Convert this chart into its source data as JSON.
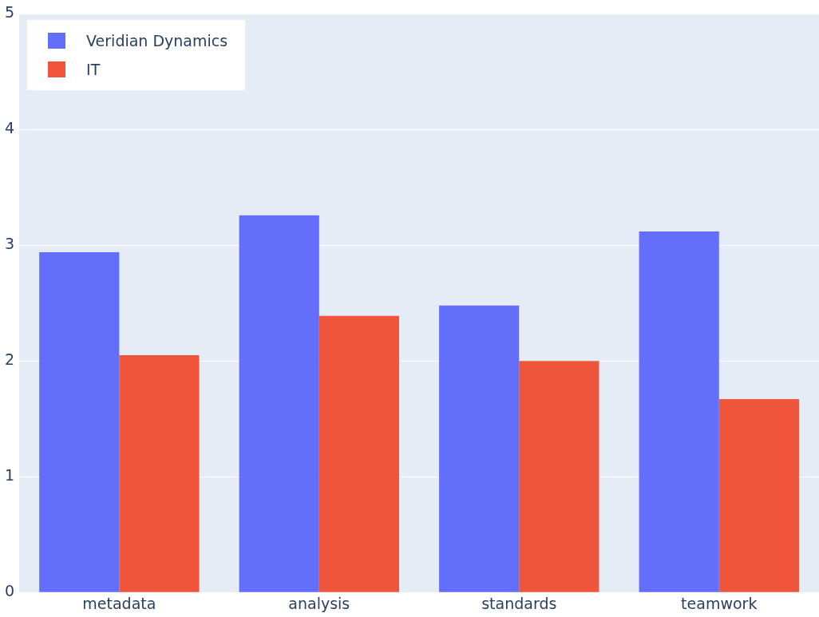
{
  "chart_data": {
    "type": "bar",
    "categories": [
      "metadata",
      "analysis",
      "standards",
      "teamwork"
    ],
    "series": [
      {
        "name": "Veridian Dynamics",
        "color": "#636efa",
        "values": [
          2.94,
          3.26,
          2.48,
          3.12
        ]
      },
      {
        "name": "IT",
        "color": "#ef553b",
        "values": [
          2.05,
          2.39,
          2.0,
          1.67
        ]
      }
    ],
    "ylim": [
      0,
      5
    ],
    "yticks": [
      0,
      1,
      2,
      3,
      4,
      5
    ],
    "grid": "y",
    "legend": "top left"
  }
}
